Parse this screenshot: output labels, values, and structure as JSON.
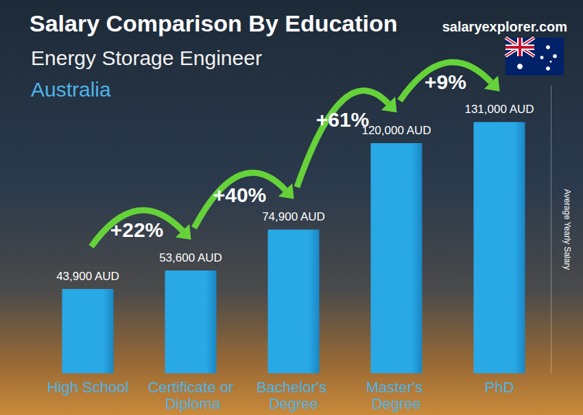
{
  "chart_data": {
    "type": "bar",
    "title": "Salary Comparison By Education",
    "subtitle": "Energy Storage Engineer",
    "location": "Australia",
    "source": "salaryexplorer.com",
    "y_label": "Average Yearly Salary",
    "categories": [
      "High School",
      "Certificate or Diploma",
      "Bachelor's Degree",
      "Master's Degree",
      "PhD"
    ],
    "values": [
      43900,
      53600,
      74900,
      120000,
      131000
    ],
    "value_labels": [
      "43,900 AUD",
      "53,600 AUD",
      "74,900 AUD",
      "120,000 AUD",
      "131,000 AUD"
    ],
    "color": "#29a8e6",
    "annotations": [
      "+22%",
      "+40%",
      "+61%",
      "+9%"
    ],
    "ylim": [
      0,
      150000
    ],
    "yticks": [],
    "grid": false,
    "data_labels": true,
    "tick_labels": "x"
  }
}
